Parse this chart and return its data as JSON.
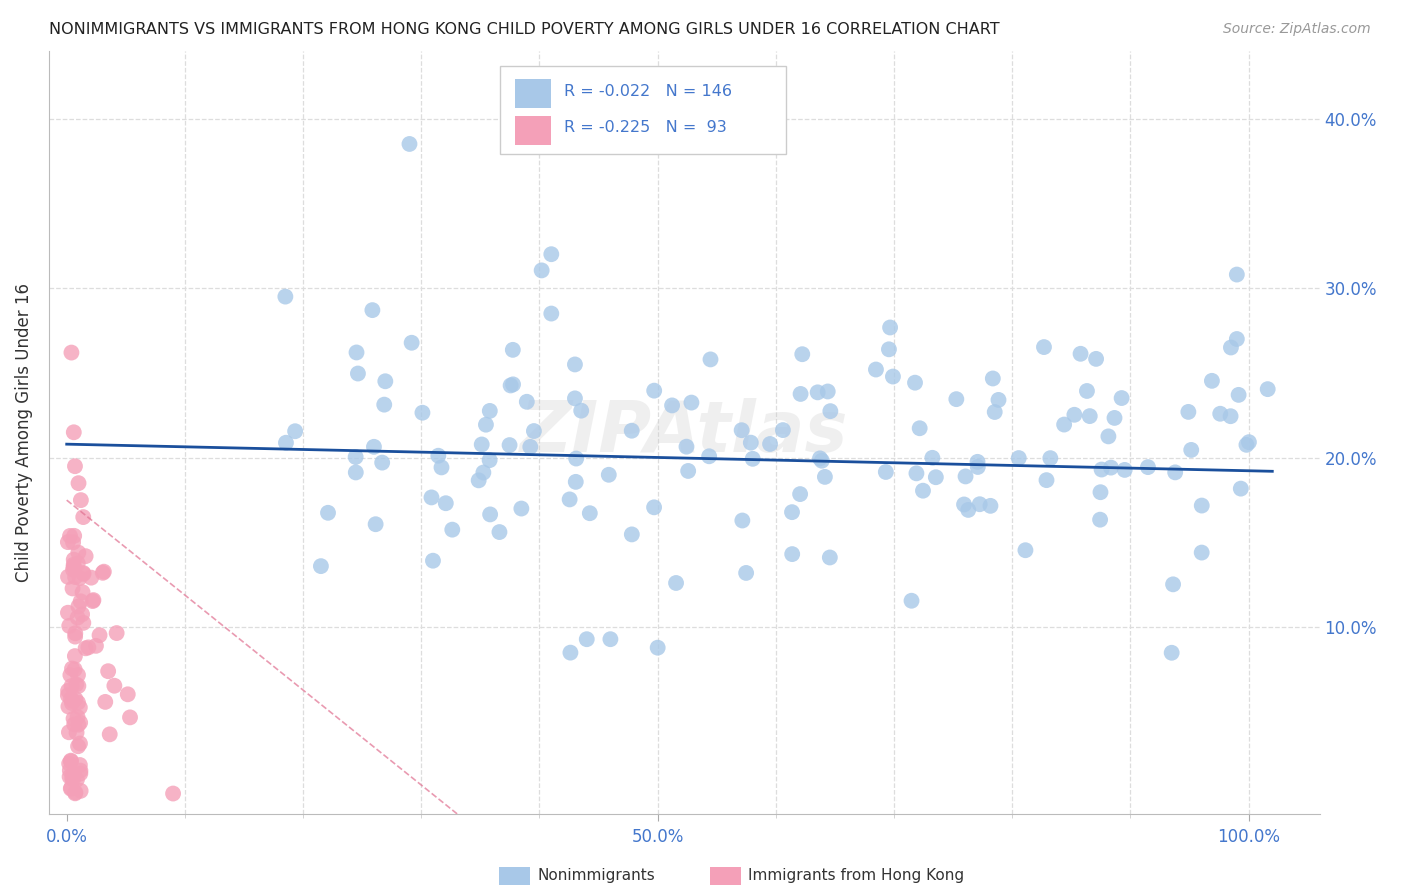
{
  "title": "NONIMMIGRANTS VS IMMIGRANTS FROM HONG KONG CHILD POVERTY AMONG GIRLS UNDER 16 CORRELATION CHART",
  "source": "Source: ZipAtlas.com",
  "ylabel": "Child Poverty Among Girls Under 16",
  "xlim": [
    -0.015,
    1.06
  ],
  "ylim": [
    -0.01,
    0.44
  ],
  "blue_R": -0.022,
  "blue_N": 146,
  "pink_R": -0.225,
  "pink_N": 93,
  "blue_color": "#A8C8E8",
  "pink_color": "#F4A0B8",
  "blue_line_color": "#1A4F9C",
  "pink_line_color": "#E07090",
  "background_color": "#FFFFFF",
  "grid_color": "#DDDDDD",
  "watermark": "ZIPAtlas",
  "tick_color": "#4477CC",
  "title_color": "#222222",
  "ylabel_color": "#333333"
}
